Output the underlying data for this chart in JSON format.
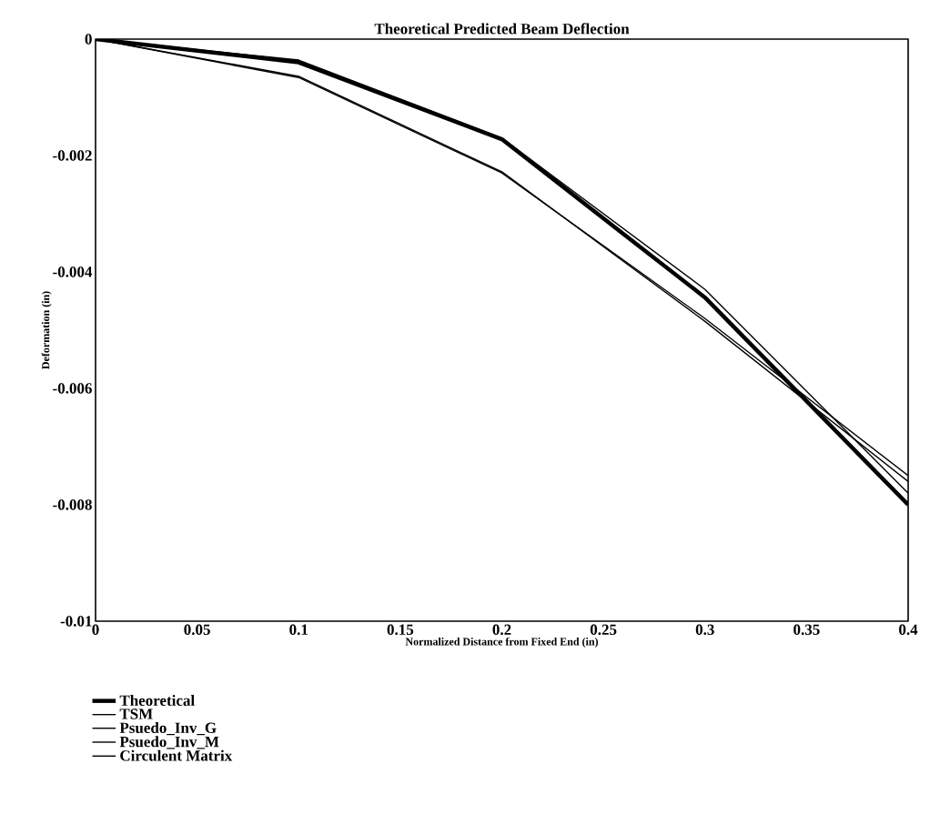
{
  "chart_data": {
    "type": "line",
    "title": "Theoretical Predicted Beam Deflection",
    "xlabel": "Normalized Distance from Fixed End (in)",
    "ylabel": "Deformation (in)",
    "x": [
      0,
      0.1,
      0.2,
      0.3,
      0.4
    ],
    "series": [
      {
        "name": "Theoretical",
        "color": "#000000",
        "values": [
          0,
          -0.0004,
          -0.00172,
          -0.00444,
          -0.008
        ]
      },
      {
        "name": "TSM",
        "values": [
          null,
          null,
          null,
          null,
          null
        ]
      },
      {
        "name": "Psuedo_Inv_G",
        "color": "#000000",
        "values": [
          0,
          -0.00036,
          -0.0017,
          -0.0043,
          -0.0078
        ]
      },
      {
        "name": "Psuedo_Inv_M",
        "color": "#000000",
        "values": [
          0,
          -0.00066,
          -0.0023,
          -0.0048,
          -0.0075
        ]
      },
      {
        "name": "Circulent Matrix",
        "color": "#000000",
        "values": [
          0,
          -0.00064,
          -0.00228,
          -0.00485,
          -0.0076
        ]
      }
    ],
    "xlim": [
      0,
      0.4
    ],
    "xticks": [
      0,
      0.05,
      0.1,
      0.15,
      0.2,
      0.25,
      0.3,
      0.35,
      0.4
    ],
    "ylim": [
      -0.01,
      0
    ],
    "yticks": [
      -0.01,
      -0.008,
      -0.006,
      -0.004,
      -0.002,
      0
    ],
    "grid": false,
    "legend": "bottom left",
    "marker": "none",
    "line_style": "solid"
  }
}
